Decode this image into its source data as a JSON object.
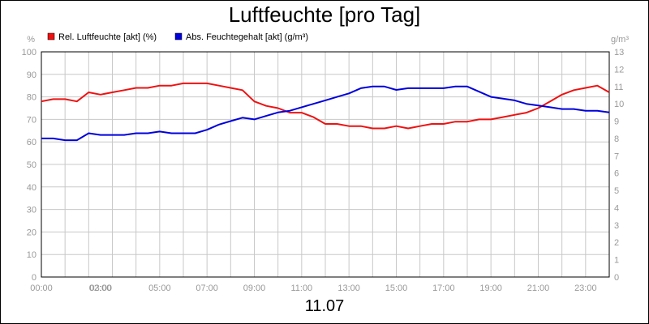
{
  "chart_data": {
    "type": "line",
    "title": "Luftfeuchte [pro Tag]",
    "date_label": "11.07",
    "left_unit": "%",
    "right_unit": "g/m³",
    "x_tick_labels": [
      "00:00",
      "02:00",
      "03:00",
      "05:00",
      "07:00",
      "09:00",
      "11:00",
      "13:00",
      "15:00",
      "17:00",
      "19:00",
      "21:00",
      "23:00"
    ],
    "x_tick_hours": [
      0,
      2,
      3,
      5,
      7,
      9,
      11,
      13,
      15,
      17,
      19,
      21,
      23
    ],
    "xlim": [
      0,
      24
    ],
    "left_axis": {
      "ylim": [
        0,
        100
      ],
      "ticks": [
        0,
        10,
        20,
        30,
        40,
        50,
        60,
        70,
        80,
        90,
        100
      ]
    },
    "right_axis": {
      "ylim": [
        0,
        13
      ],
      "ticks": [
        0,
        1,
        2,
        3,
        4,
        5,
        6,
        7,
        8,
        9,
        10,
        11,
        12,
        13
      ]
    },
    "grid": true,
    "legend_placement": "top-left",
    "series": [
      {
        "name": "Rel. Luftfeuchte [akt] (%)",
        "color": "#ee1111",
        "axis": "left",
        "x": [
          0,
          0.5,
          1,
          1.5,
          2,
          2.5,
          3,
          3.5,
          4,
          4.5,
          5,
          5.5,
          6,
          6.5,
          7,
          7.5,
          8,
          8.5,
          9,
          9.5,
          10,
          10.5,
          11,
          11.5,
          12,
          12.5,
          13,
          13.5,
          14,
          14.5,
          15,
          15.5,
          16,
          16.5,
          17,
          17.5,
          18,
          18.5,
          19,
          19.5,
          20,
          20.5,
          21,
          21.5,
          22,
          22.5,
          23,
          23.5,
          24
        ],
        "values": [
          78,
          79,
          79,
          78,
          82,
          81,
          82,
          83,
          84,
          84,
          85,
          85,
          86,
          86,
          86,
          85,
          84,
          83,
          78,
          76,
          75,
          73,
          73,
          71,
          68,
          68,
          67,
          67,
          66,
          66,
          67,
          66,
          67,
          68,
          68,
          69,
          69,
          70,
          70,
          71,
          72,
          73,
          75,
          78,
          81,
          83,
          84,
          85,
          82
        ]
      },
      {
        "name": "Abs. Feuchtegehalt [akt] (g/m³)",
        "color": "#0000dd",
        "axis": "right",
        "x": [
          0,
          0.5,
          1,
          1.5,
          2,
          2.5,
          3,
          3.5,
          4,
          4.5,
          5,
          5.5,
          6,
          6.5,
          7,
          7.5,
          8,
          8.5,
          9,
          9.5,
          10,
          10.5,
          11,
          11.5,
          12,
          12.5,
          13,
          13.5,
          14,
          14.5,
          15,
          15.5,
          16,
          16.5,
          17,
          17.5,
          18,
          18.5,
          19,
          19.5,
          20,
          20.5,
          21,
          21.5,
          22,
          22.5,
          23,
          23.5,
          24
        ],
        "values": [
          8.0,
          8.0,
          7.9,
          7.9,
          8.3,
          8.2,
          8.2,
          8.2,
          8.3,
          8.3,
          8.4,
          8.3,
          8.3,
          8.3,
          8.5,
          8.8,
          9.0,
          9.2,
          9.1,
          9.3,
          9.5,
          9.6,
          9.8,
          10.0,
          10.2,
          10.4,
          10.6,
          10.9,
          11.0,
          11.0,
          10.8,
          10.9,
          10.9,
          10.9,
          10.9,
          11.0,
          11.0,
          10.7,
          10.4,
          10.3,
          10.2,
          10.0,
          9.9,
          9.8,
          9.7,
          9.7,
          9.6,
          9.6,
          9.5
        ]
      }
    ]
  }
}
